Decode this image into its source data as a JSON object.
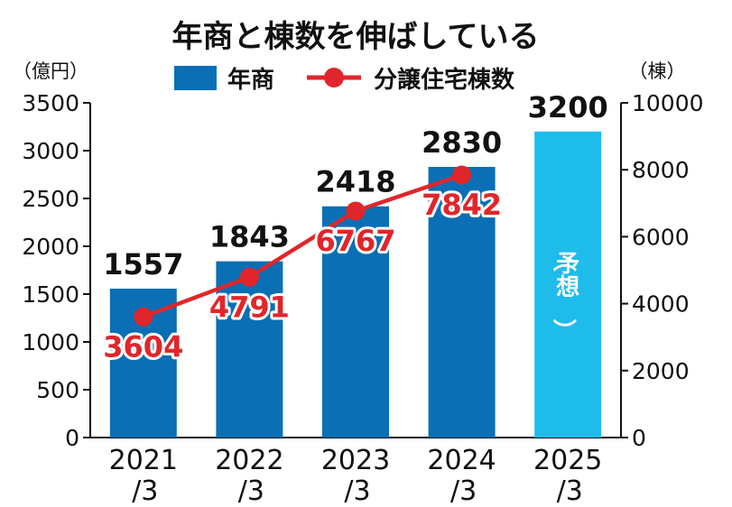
{
  "chart_data": {
    "type": "bar+line",
    "title": "年商と棟数を伸ばしている",
    "categories": [
      "2021/3",
      "2022/3",
      "2023/3",
      "2024/3",
      "2025/3"
    ],
    "category_lines": [
      [
        "2021",
        "/3"
      ],
      [
        "2022",
        "/3"
      ],
      [
        "2023",
        "/3"
      ],
      [
        "2024",
        "/3"
      ],
      [
        "2025",
        "/3"
      ]
    ],
    "series": [
      {
        "name": "年商",
        "type": "bar",
        "axis": "left",
        "unit": "（億円）",
        "values": [
          1557,
          1843,
          2418,
          2830,
          3200
        ],
        "color": "#0a6fb5",
        "forecast_color": "#1ebcea"
      },
      {
        "name": "分譲住宅棟数",
        "type": "line",
        "axis": "right",
        "unit": "（棟）",
        "values": [
          3604,
          4791,
          6767,
          7842,
          null
        ],
        "color": "#e0262b"
      }
    ],
    "forecast_index": 4,
    "forecast_label": "（予想）",
    "y_left": {
      "min": 0,
      "max": 3500,
      "ticks": [
        0,
        500,
        1000,
        1500,
        2000,
        2500,
        3000,
        3500
      ]
    },
    "y_right": {
      "min": 0,
      "max": 10000,
      "ticks": [
        0,
        2000,
        4000,
        6000,
        8000,
        10000
      ]
    }
  }
}
